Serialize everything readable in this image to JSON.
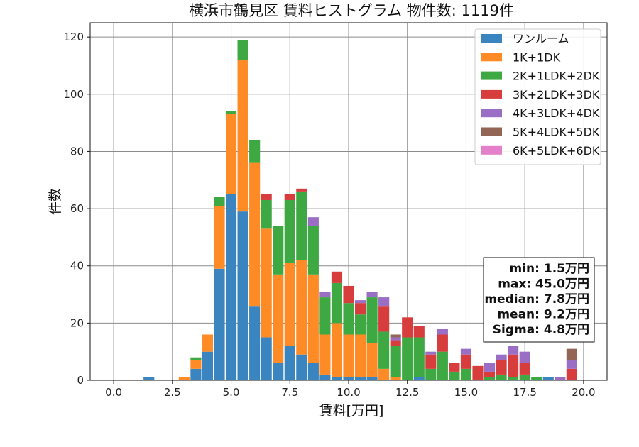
{
  "chart_data": {
    "type": "bar",
    "stacked": true,
    "title": "横浜市鶴見区 賃料ヒストグラム 物件数: 1119件",
    "xlabel": "賃料[万円]",
    "ylabel": "件数",
    "xlim": [
      -1.0,
      21.0
    ],
    "ylim": [
      0,
      125
    ],
    "bin_width": 0.5,
    "x_ticks": [
      0,
      2.5,
      5,
      7.5,
      10,
      12.5,
      15,
      17.5,
      20
    ],
    "x_tick_labels": [
      "0.0",
      "2.5",
      "5.0",
      "7.5",
      "10.0",
      "12.5",
      "15.0",
      "17.5",
      "20.0"
    ],
    "y_ticks": [
      0,
      20,
      40,
      60,
      80,
      100,
      120
    ],
    "y_tick_labels": [
      "0",
      "20",
      "40",
      "60",
      "80",
      "100",
      "120"
    ],
    "grid": true,
    "legend_position": "top-right",
    "x": [
      1.5,
      3.0,
      3.5,
      4.0,
      4.5,
      5.0,
      5.5,
      6.0,
      6.5,
      7.0,
      7.5,
      8.0,
      8.5,
      9.0,
      9.5,
      10.0,
      10.5,
      11.0,
      11.5,
      12.0,
      12.5,
      13.0,
      13.5,
      14.0,
      14.5,
      15.0,
      15.5,
      16.0,
      16.5,
      17.0,
      17.5,
      18.0,
      18.5,
      19.0,
      19.5
    ],
    "series": [
      {
        "name": "ワンルーム",
        "color": "#3a85bf",
        "values": [
          1,
          0,
          4,
          10,
          39,
          65,
          59,
          26,
          15,
          6,
          12,
          9,
          6,
          2,
          1,
          1,
          1,
          1,
          0,
          0,
          0,
          1,
          0,
          0,
          0,
          0,
          0,
          0,
          0,
          0,
          0,
          0,
          1,
          0,
          0
        ]
      },
      {
        "name": "1K+1DK",
        "color": "#ff8b26",
        "values": [
          0,
          1,
          3,
          6,
          22,
          28,
          53,
          50,
          38,
          31,
          29,
          33,
          31,
          14,
          19,
          15,
          15,
          12,
          4,
          1,
          0,
          0,
          0,
          0,
          0,
          0,
          0,
          0,
          0,
          0,
          0,
          0,
          0,
          0,
          0
        ]
      },
      {
        "name": "2K+1LDK+2DK",
        "color": "#3ea843",
        "values": [
          0,
          0,
          1,
          0,
          3,
          1,
          7,
          8,
          10,
          17,
          22,
          24,
          17,
          13,
          14,
          11,
          7,
          16,
          13,
          11,
          15,
          14,
          4,
          10,
          3,
          4,
          0,
          1,
          2,
          1,
          2,
          1,
          0,
          0,
          0
        ]
      },
      {
        "name": "3K+2LDK+3DK",
        "color": "#d83d3d",
        "values": [
          0,
          0,
          0,
          0,
          0,
          0,
          0,
          0,
          2,
          0,
          2,
          1,
          0,
          0,
          4,
          6,
          4,
          0,
          9,
          2,
          7,
          4,
          5,
          6,
          3,
          5,
          5,
          2,
          5,
          8,
          4,
          0,
          0,
          0,
          4
        ]
      },
      {
        "name": "4K+3LDK+4DK",
        "color": "#9b6ec5",
        "values": [
          0,
          0,
          0,
          0,
          0,
          0,
          0,
          0,
          0,
          0,
          0,
          0,
          3,
          2,
          0,
          0,
          1,
          2,
          3,
          1,
          0,
          0,
          1,
          2,
          0,
          2,
          0,
          3,
          2,
          3,
          4,
          0,
          0,
          1,
          3
        ]
      },
      {
        "name": "5K+4LDK+5DK",
        "color": "#936555",
        "values": [
          0,
          0,
          0,
          0,
          0,
          0,
          0,
          0,
          0,
          0,
          0,
          0,
          0,
          0,
          0,
          0,
          0,
          0,
          0,
          1,
          0,
          0,
          0,
          0,
          0,
          0,
          0,
          0,
          0,
          0,
          0,
          0,
          0,
          0,
          4
        ]
      },
      {
        "name": "6K+5LDK+6DK",
        "color": "#e47fca",
        "values": [
          0,
          0,
          0,
          0,
          0,
          0,
          0,
          0,
          0,
          0,
          0,
          0,
          0,
          0,
          0,
          0,
          0,
          0,
          0,
          0,
          0,
          0,
          0,
          0,
          0,
          0,
          0,
          0,
          0,
          0,
          0,
          0,
          0,
          0,
          0
        ]
      }
    ],
    "stats": [
      "min: 1.5万円",
      "max: 45.0万円",
      "median: 7.8万円",
      "mean: 9.2万円",
      "Sigma: 4.8万円"
    ]
  }
}
